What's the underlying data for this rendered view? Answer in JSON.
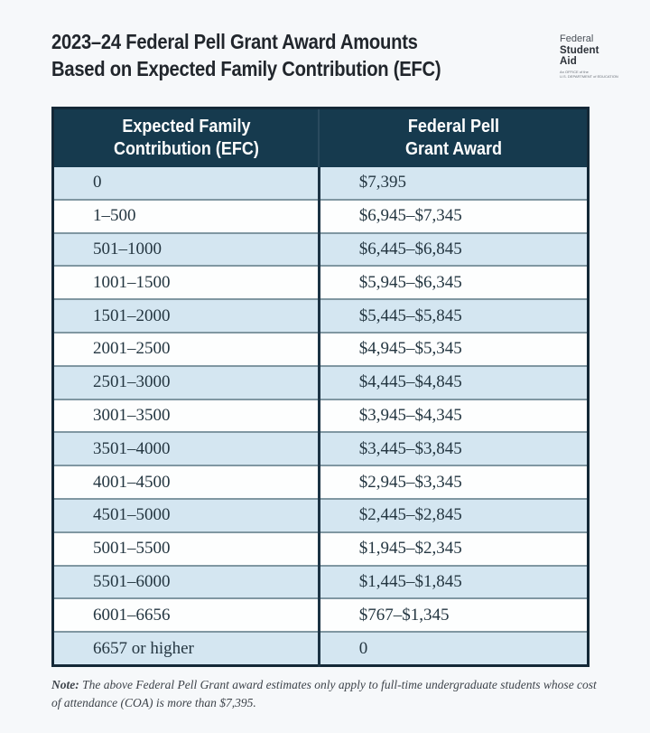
{
  "header": {
    "title_line1": "2023–24 Federal Pell Grant Award Amounts",
    "title_line2": "Based on Expected Family Contribution (EFC)"
  },
  "logo": {
    "line1": "Federal",
    "line2": "Student",
    "line3": "Aid",
    "tagline1": "An OFFICE of the",
    "tagline2": "U.S. DEPARTMENT of EDUCATION"
  },
  "table": {
    "header": {
      "col1_line1": "Expected Family",
      "col1_line2": "Contribution (EFC)",
      "col2_line1": "Federal Pell",
      "col2_line2": "Grant Award"
    },
    "rows": [
      {
        "efc": "0",
        "award": "$7,395"
      },
      {
        "efc": "1–500",
        "award": "$6,945–$7,345"
      },
      {
        "efc": "501–1000",
        "award": "$6,445–$6,845"
      },
      {
        "efc": "1001–1500",
        "award": "$5,945–$6,345"
      },
      {
        "efc": "1501–2000",
        "award": "$5,445–$5,845"
      },
      {
        "efc": "2001–2500",
        "award": "$4,945–$5,345"
      },
      {
        "efc": "2501–3000",
        "award": "$4,445–$4,845"
      },
      {
        "efc": "3001–3500",
        "award": "$3,945–$4,345"
      },
      {
        "efc": "3501–4000",
        "award": "$3,445–$3,845"
      },
      {
        "efc": "4001–4500",
        "award": "$2,945–$3,345"
      },
      {
        "efc": "4501–5000",
        "award": "$2,445–$2,845"
      },
      {
        "efc": "5001–5500",
        "award": "$1,945–$2,345"
      },
      {
        "efc": "5501–6000",
        "award": "$1,445–$1,845"
      },
      {
        "efc": "6001–6656",
        "award": "$767–$1,345"
      },
      {
        "efc": "6657 or higher",
        "award": "0"
      }
    ]
  },
  "note": {
    "label": "Note:",
    "text": "The above Federal Pell Grant award estimates only apply to full-time undergraduate students whose cost of attendance (COA) is more than $7,395."
  },
  "colors": {
    "header_bg": "#163a4e",
    "table_border": "#142837",
    "column_divider": "#1c3344",
    "row_separator": "#8097a2",
    "row_alt": "#d4e6f1",
    "row_base": "#fdfefe",
    "cell_text": "#243641",
    "title_text": "#21262c",
    "note_text": "#3d434a",
    "page_bg": "#f6f8fa"
  }
}
